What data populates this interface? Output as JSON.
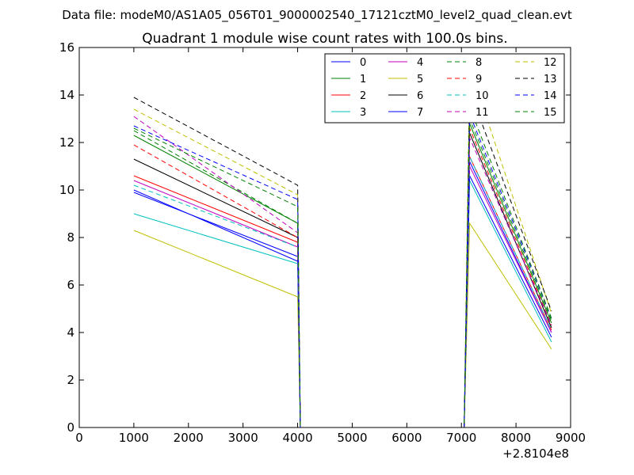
{
  "chart_data": {
    "type": "line",
    "suptitle": "Data file: modeM0/AS1A05_056T01_9000002540_17121cztM0_level2_quad_clean.evt",
    "title": "Quadrant 1 module wise count rates with 100.0s bins.",
    "xlabel": "",
    "ylabel": "",
    "x_offset_label": "+2.8104e8",
    "xlim": [
      0,
      9000
    ],
    "ylim": [
      0,
      16
    ],
    "xticks": [
      "0",
      "1000",
      "2000",
      "3000",
      "4000",
      "5000",
      "6000",
      "7000",
      "8000",
      "9000"
    ],
    "yticks": [
      "0",
      "2",
      "4",
      "6",
      "8",
      "10",
      "12",
      "14",
      "16"
    ],
    "legend_position": "upper right",
    "legend_columns": 4,
    "x": [
      1000,
      4000,
      4050,
      7050,
      7150,
      8650
    ],
    "series": [
      {
        "name": "0",
        "color": "#0000ff",
        "style": "solid",
        "values": [
          9.9,
          7.2,
          0,
          0,
          11.2,
          4.0
        ]
      },
      {
        "name": "1",
        "color": "#008000",
        "style": "solid",
        "values": [
          12.3,
          8.6,
          0,
          0,
          12.8,
          4.4
        ]
      },
      {
        "name": "2",
        "color": "#ff0000",
        "style": "solid",
        "values": [
          10.6,
          7.8,
          0,
          0,
          11.4,
          4.1
        ]
      },
      {
        "name": "3",
        "color": "#00bfbf",
        "style": "solid",
        "values": [
          9.0,
          6.9,
          0,
          0,
          10.4,
          3.6
        ]
      },
      {
        "name": "4",
        "color": "#bf00bf",
        "style": "solid",
        "values": [
          10.4,
          7.6,
          0,
          0,
          11.0,
          4.0
        ]
      },
      {
        "name": "5",
        "color": "#bfbf00",
        "style": "solid",
        "values": [
          8.3,
          5.5,
          0,
          0,
          8.6,
          3.3
        ]
      },
      {
        "name": "6",
        "color": "#000000",
        "style": "solid",
        "values": [
          11.3,
          8.0,
          0,
          0,
          12.4,
          4.2
        ]
      },
      {
        "name": "7",
        "color": "#0000ff",
        "style": "solid",
        "values": [
          10.0,
          7.0,
          0,
          0,
          10.6,
          3.8
        ]
      },
      {
        "name": "8",
        "color": "#008000",
        "style": "dashed",
        "values": [
          12.5,
          8.6,
          0,
          0,
          13.0,
          4.5
        ]
      },
      {
        "name": "9",
        "color": "#ff0000",
        "style": "dashed",
        "values": [
          11.9,
          8.0,
          0,
          0,
          12.6,
          4.3
        ]
      },
      {
        "name": "10",
        "color": "#00bfbf",
        "style": "dashed",
        "values": [
          10.2,
          7.6,
          0,
          0,
          11.4,
          4.1
        ]
      },
      {
        "name": "11",
        "color": "#bf00bf",
        "style": "dashed",
        "values": [
          13.1,
          8.2,
          0,
          0,
          12.2,
          4.3
        ]
      },
      {
        "name": "12",
        "color": "#bfbf00",
        "style": "dashed",
        "values": [
          13.4,
          9.8,
          0,
          0,
          15.2,
          4.8
        ]
      },
      {
        "name": "13",
        "color": "#000000",
        "style": "dashed",
        "values": [
          13.9,
          10.2,
          0,
          0,
          14.2,
          4.9
        ]
      },
      {
        "name": "14",
        "color": "#0000ff",
        "style": "dashed",
        "values": [
          12.7,
          9.6,
          0,
          0,
          13.2,
          4.6
        ]
      },
      {
        "name": "15",
        "color": "#008000",
        "style": "dashed",
        "values": [
          12.6,
          9.3,
          0,
          0,
          13.5,
          4.6
        ]
      }
    ]
  }
}
